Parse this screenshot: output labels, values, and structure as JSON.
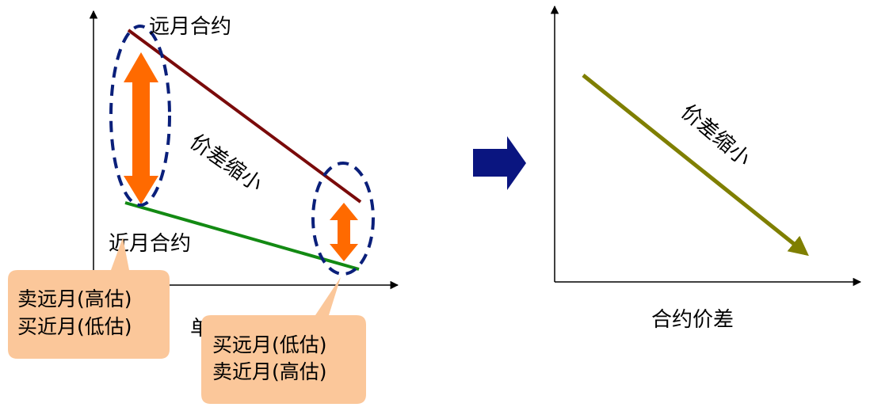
{
  "left_panel": {
    "far_contract_label": "远月合约",
    "near_contract_label": "近月合约",
    "spread_narrowing_label": "价差缩小",
    "x_axis_label_partial": "单",
    "callout_left": {
      "line1": "卖远月(高估)",
      "line2": "买近月(低估)"
    },
    "callout_right": {
      "line1": "买远月(低估)",
      "line2": "卖近月(高估)"
    }
  },
  "right_panel": {
    "spread_narrowing_label": "价差缩小",
    "x_axis_label": "合约价差"
  },
  "colors": {
    "far_line": "#7a0a0a",
    "near_line": "#138a13",
    "spread_arrow": "#ff6a00",
    "dashed_ellipse": "#0a1f7a",
    "transition_arrow": "#0a1580",
    "trend_arrow": "#7f7f00",
    "callout_fill": "#fbc79a"
  }
}
